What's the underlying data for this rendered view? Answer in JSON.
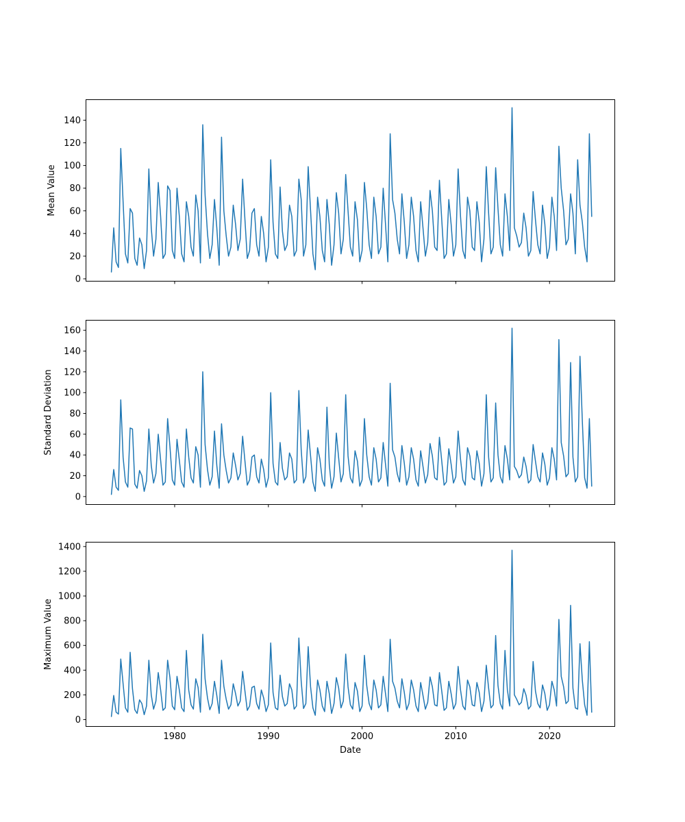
{
  "figure": {
    "background": "#ffffff",
    "line_color": "#1f77b4"
  },
  "chart_data": {
    "type": "line",
    "xlabel": "Date",
    "x_unit": "year",
    "xticks": [
      1980,
      1990,
      2000,
      2010,
      2020
    ],
    "xlim": [
      1970.5,
      2027.0
    ],
    "x_start": 1973.25,
    "x_step": 0.25,
    "grid": false,
    "legend": "none",
    "subplots": [
      {
        "name": "mean",
        "ylabel": "Mean Value",
        "yticks": [
          0,
          20,
          40,
          60,
          80,
          100,
          120,
          140
        ],
        "ylim": [
          -2.4,
          158.4
        ],
        "values": [
          6,
          45,
          15,
          10,
          115,
          68,
          22,
          14,
          62,
          58,
          18,
          12,
          36,
          30,
          9,
          25,
          97,
          45,
          20,
          35,
          85,
          55,
          18,
          22,
          82,
          78,
          25,
          18,
          80,
          55,
          22,
          15,
          68,
          55,
          28,
          20,
          74,
          60,
          14,
          136,
          74,
          40,
          18,
          30,
          70,
          45,
          12,
          125,
          60,
          38,
          20,
          28,
          65,
          48,
          25,
          35,
          88,
          52,
          18,
          25,
          58,
          62,
          30,
          20,
          55,
          40,
          15,
          28,
          105,
          50,
          22,
          18,
          81,
          42,
          25,
          30,
          65,
          55,
          20,
          25,
          88,
          70,
          20,
          30,
          99,
          60,
          22,
          8,
          72,
          55,
          25,
          15,
          70,
          48,
          12,
          30,
          76,
          58,
          22,
          35,
          92,
          60,
          28,
          20,
          68,
          52,
          15,
          25,
          85,
          62,
          30,
          18,
          72,
          55,
          22,
          28,
          80,
          48,
          15,
          128,
          70,
          58,
          35,
          22,
          75,
          50,
          18,
          30,
          72,
          55,
          25,
          15,
          68,
          45,
          20,
          32,
          78,
          60,
          28,
          25,
          87,
          52,
          18,
          22,
          70,
          48,
          20,
          30,
          97,
          55,
          25,
          18,
          72,
          60,
          28,
          25,
          68,
          50,
          15,
          35,
          99,
          58,
          22,
          28,
          98,
          62,
          30,
          20,
          75,
          55,
          25,
          151,
          45,
          38,
          28,
          32,
          58,
          45,
          20,
          25,
          77,
          52,
          30,
          22,
          65,
          48,
          18,
          28,
          72,
          55,
          25,
          117,
          80,
          60,
          30,
          35,
          75,
          58,
          22,
          105,
          65,
          50,
          28,
          15,
          128,
          55
        ]
      },
      {
        "name": "std",
        "ylabel": "Standard Deviation",
        "yticks": [
          0,
          20,
          40,
          60,
          80,
          100,
          120,
          140,
          160
        ],
        "ylim": [
          -8,
          170
        ],
        "values": [
          2,
          26,
          9,
          6,
          93,
          38,
          14,
          9,
          66,
          65,
          12,
          8,
          25,
          20,
          5,
          15,
          65,
          30,
          13,
          22,
          60,
          35,
          11,
          14,
          75,
          48,
          16,
          11,
          55,
          35,
          14,
          9,
          65,
          38,
          18,
          13,
          48,
          40,
          9,
          120,
          50,
          26,
          11,
          19,
          63,
          30,
          8,
          70,
          40,
          25,
          13,
          18,
          42,
          30,
          16,
          22,
          58,
          34,
          11,
          16,
          38,
          40,
          19,
          13,
          36,
          26,
          9,
          18,
          100,
          32,
          14,
          11,
          52,
          27,
          16,
          19,
          42,
          36,
          13,
          16,
          102,
          45,
          13,
          19,
          64,
          39,
          14,
          5,
          47,
          36,
          16,
          10,
          86,
          31,
          8,
          19,
          61,
          37,
          14,
          22,
          98,
          39,
          18,
          13,
          44,
          34,
          10,
          16,
          75,
          40,
          19,
          11,
          47,
          36,
          14,
          18,
          52,
          31,
          10,
          109,
          45,
          38,
          22,
          14,
          49,
          32,
          11,
          19,
          47,
          36,
          16,
          10,
          44,
          29,
          13,
          21,
          51,
          39,
          18,
          16,
          57,
          34,
          11,
          14,
          46,
          31,
          13,
          19,
          63,
          36,
          16,
          11,
          47,
          39,
          18,
          16,
          44,
          32,
          10,
          22,
          98,
          38,
          14,
          18,
          90,
          40,
          19,
          13,
          49,
          36,
          16,
          162,
          29,
          25,
          18,
          21,
          38,
          29,
          13,
          16,
          50,
          34,
          19,
          14,
          42,
          31,
          11,
          18,
          47,
          36,
          16,
          151,
          52,
          39,
          19,
          22,
          129,
          38,
          14,
          19,
          135,
          73,
          18,
          8,
          75,
          10
        ]
      },
      {
        "name": "max",
        "ylabel": "Maximum Value",
        "yticks": [
          0,
          200,
          400,
          600,
          800,
          1000,
          1200,
          1400
        ],
        "ylim": [
          -58,
          1438
        ],
        "values": [
          25,
          195,
          60,
          45,
          490,
          290,
          95,
          60,
          545,
          250,
          80,
          50,
          160,
          130,
          40,
          110,
          480,
          200,
          85,
          150,
          380,
          240,
          75,
          95,
          480,
          340,
          110,
          80,
          350,
          240,
          95,
          65,
          560,
          240,
          120,
          85,
          330,
          260,
          60,
          690,
          330,
          175,
          80,
          130,
          310,
          195,
          50,
          480,
          270,
          165,
          85,
          120,
          290,
          210,
          110,
          150,
          390,
          230,
          75,
          110,
          260,
          270,
          130,
          85,
          240,
          175,
          65,
          120,
          620,
          220,
          95,
          80,
          360,
          185,
          110,
          130,
          290,
          240,
          85,
          110,
          660,
          310,
          90,
          130,
          590,
          265,
          95,
          35,
          320,
          240,
          110,
          65,
          310,
          210,
          50,
          130,
          340,
          255,
          95,
          150,
          530,
          265,
          120,
          85,
          300,
          230,
          65,
          110,
          520,
          275,
          130,
          80,
          320,
          240,
          95,
          120,
          350,
          210,
          65,
          650,
          310,
          255,
          150,
          95,
          330,
          220,
          80,
          130,
          320,
          240,
          110,
          65,
          300,
          195,
          85,
          140,
          345,
          265,
          120,
          110,
          380,
          230,
          75,
          95,
          310,
          210,
          85,
          130,
          430,
          240,
          110,
          80,
          320,
          265,
          120,
          110,
          300,
          220,
          65,
          150,
          440,
          255,
          95,
          120,
          680,
          275,
          130,
          85,
          560,
          240,
          110,
          1370,
          200,
          165,
          120,
          140,
          250,
          195,
          85,
          110,
          470,
          230,
          130,
          95,
          280,
          210,
          75,
          120,
          310,
          240,
          110,
          810,
          350,
          265,
          130,
          150,
          924,
          255,
          95,
          85,
          614,
          320,
          120,
          35,
          630,
          60
        ]
      }
    ]
  }
}
